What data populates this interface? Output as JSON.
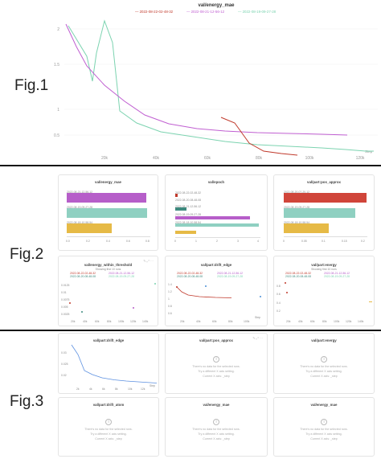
{
  "fig1": {
    "label": "Fig.1",
    "title": "val/energy_mae",
    "legend": [
      {
        "name": "2022-08-22-02-48-32",
        "color": "#c0392b"
      },
      {
        "name": "2022-08-21-12-56-12",
        "color": "#c05fd1"
      },
      {
        "name": "2022-08-19-09-27-28",
        "color": "#7cd3b0"
      }
    ],
    "y_ticks": [
      "2",
      "1.5",
      "1",
      "0.5"
    ],
    "x_ticks": [
      "20k",
      "40k",
      "60k",
      "80k",
      "100k",
      "120k"
    ],
    "x_unit": "Step"
  },
  "fig2": {
    "label": "Fig.2",
    "bar_panels": [
      {
        "title": "val/energy_mae",
        "entries": [
          "2022-08-21-12-56-12",
          "2022-08-19-09-27-28",
          "2022-08-18-10-58-54"
        ],
        "ticks": [
          "0.0",
          "0.2",
          "0.4",
          "0.6",
          "0.8"
        ]
      },
      {
        "title": "val/epoch",
        "entries": [
          "2022-08-22-02-48-32",
          "2022-08-20-08-48-08",
          "2022-08-21-12-56-12",
          "2022-08-19-09-27-28",
          "2022-08-18-10-58-54"
        ],
        "ticks": [
          "0",
          "1",
          "2",
          "3",
          "4"
        ]
      },
      {
        "title": "val/part:pos_approx",
        "entries": [
          "2022-08-20-07-20-12",
          "2022-08-19-09-27-28",
          "2022-08-18-10-58-54"
        ],
        "ticks": [
          "0",
          "0.05",
          "0.1",
          "0.15",
          "0.2"
        ]
      }
    ],
    "line_panels": [
      {
        "title": "val/energy_within_threshold",
        "subtitle": "Showing first 10 runs",
        "legend": [
          "2022-08-22-02-48-32",
          "2022-08-21-12-56-12",
          "2022-08-20-08-48-08",
          "2022-08-19-09-27-28"
        ],
        "x_ticks": [
          "20k",
          "40k",
          "60k",
          "80k",
          "100k",
          "120k",
          "140k"
        ],
        "y_ticks": [
          "0.0125",
          "0.01",
          "0.0075",
          "0.005",
          "0.0025"
        ]
      },
      {
        "title": "val/part:drift_edge",
        "subtitle": "",
        "legend": [
          "2022-08-22-02-48-32",
          "2022-08-21-12-56-12",
          "2022-08-20-08-48-08",
          "2022-08-19-09-27-28"
        ],
        "x_ticks": [
          "20k",
          "40k",
          "60k",
          "80k",
          "100k"
        ],
        "y_ticks": [
          "1.4",
          "1.2",
          "1",
          "0.8",
          "0.6"
        ],
        "x_unit": "Step"
      },
      {
        "title": "val/part:energy",
        "subtitle": "Showing first 10 runs",
        "legend": [
          "2022-08-22-02-48-32",
          "2022-08-21-12-56-12",
          "2022-08-20-08-48-08",
          "2022-08-19-09-27-28"
        ],
        "x_ticks": [
          "20k",
          "40k",
          "60k",
          "80k",
          "100k",
          "120k",
          "140k"
        ],
        "y_ticks": [
          "0.8",
          "0.6",
          "0.4",
          "0.2"
        ]
      }
    ]
  },
  "fig3": {
    "label": "Fig.3",
    "chart_panel": {
      "title": "val/part:drift_edge",
      "y_ticks": [
        "0.03",
        "0.025",
        "0.02"
      ],
      "x_ticks": [
        "2k",
        "4k",
        "6k",
        "8k",
        "10k",
        "12k"
      ],
      "x_unit": "Step"
    },
    "empty_panels": [
      {
        "title": "val/part:pos_approx"
      },
      {
        "title": "val/part:energy"
      },
      {
        "title": "val/part:drift_atom"
      },
      {
        "title": "val/energy_mae"
      },
      {
        "title": "val/energy_mae"
      }
    ],
    "no_data_lines": [
      "There's no data for the selected runs.",
      "Try a different X axis setting.",
      "Current X axis: _step"
    ]
  }
}
